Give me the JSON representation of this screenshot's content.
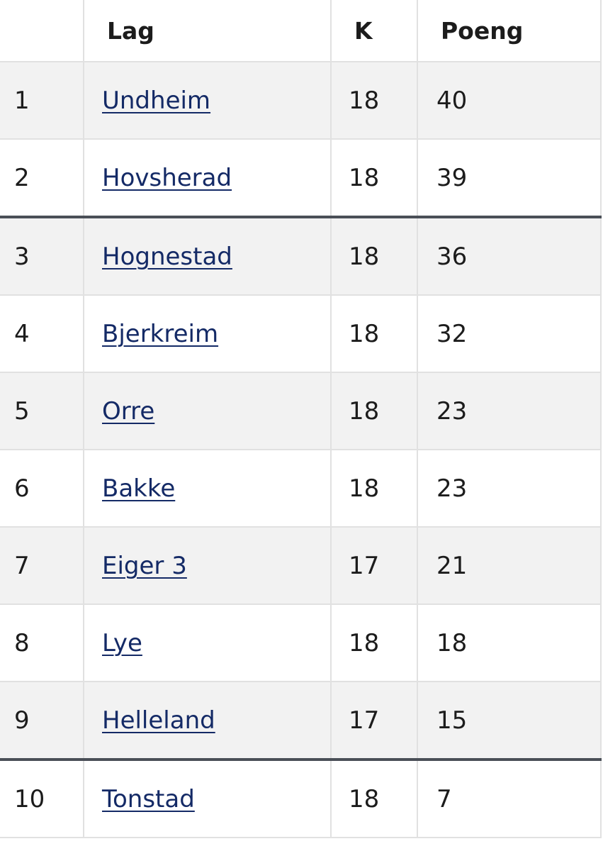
{
  "table": {
    "header": [
      "",
      "Lag",
      "K",
      "Poeng"
    ],
    "rows": [
      [
        1,
        "Undheim",
        18,
        40
      ],
      [
        2,
        "Hovsherad",
        18,
        39
      ],
      [
        3,
        "Hognestad",
        18,
        36
      ],
      [
        4,
        "Bjerkreim",
        18,
        32
      ],
      [
        5,
        "Orre",
        18,
        23
      ],
      [
        6,
        "Bakke",
        18,
        23
      ],
      [
        7,
        "Eiger 3",
        17,
        21
      ],
      [
        8,
        "Lye",
        18,
        18
      ],
      [
        9,
        "Helleland",
        17,
        15
      ],
      [
        10,
        "Tonstad",
        18,
        7
      ]
    ]
  }
}
